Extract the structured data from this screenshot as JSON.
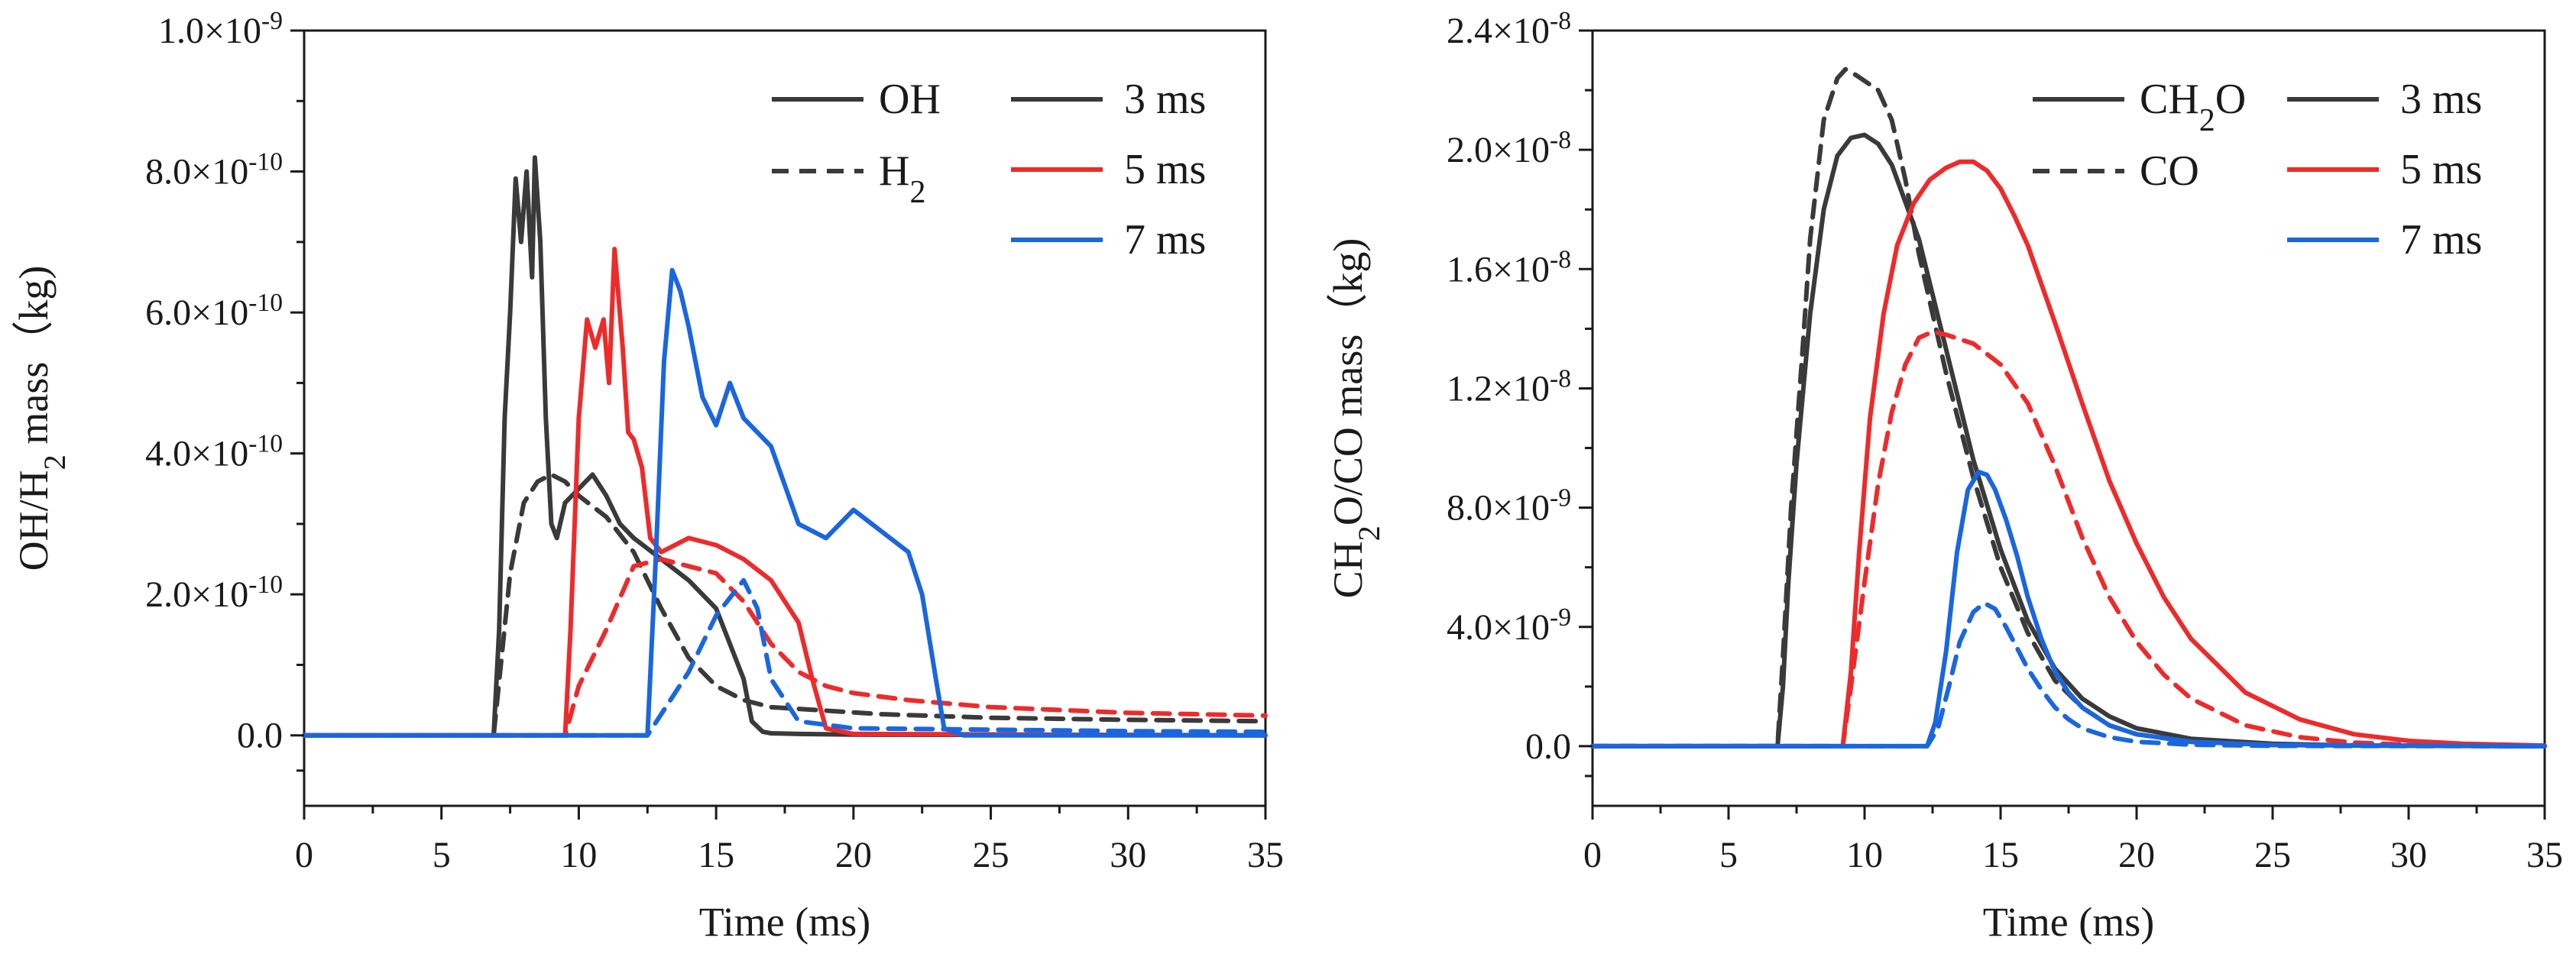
{
  "chart_data": [
    {
      "type": "line",
      "title": "",
      "xlabel": "Time (ms)",
      "ylabel": {
        "base": "OH/H",
        "sub": "2",
        "rest": " mass（kg)"
      },
      "xlim": [
        0,
        35
      ],
      "ylim": [
        -1e-10,
        1e-09
      ],
      "grid": false,
      "legend_placement": "top-right",
      "x_ticks": [
        0,
        5,
        10,
        15,
        20,
        25,
        30,
        35
      ],
      "x_tick_labels": [
        "0",
        "5",
        "10",
        "15",
        "20",
        "25",
        "30",
        "35"
      ],
      "y_ticks": [
        0,
        2e-10,
        4e-10,
        6e-10,
        8e-10,
        1e-09
      ],
      "y_tick_labels": [
        {
          "base": "0.0",
          "exp": ""
        },
        {
          "base": "2.0×10",
          "exp": "-10"
        },
        {
          "base": "4.0×10",
          "exp": "-10"
        },
        {
          "base": "6.0×10",
          "exp": "-10"
        },
        {
          "base": "8.0×10",
          "exp": "-10"
        },
        {
          "base": "1.0×10",
          "exp": "-9"
        }
      ],
      "legend_species": [
        {
          "base": "OH",
          "sub": "",
          "rest": "",
          "dash": "solid"
        },
        {
          "base": "H",
          "sub": "2",
          "rest": "",
          "dash": "dashed"
        }
      ],
      "legend_times": [
        {
          "label": "3 ms",
          "color": "#3a3a3a"
        },
        {
          "label": "5 ms",
          "color": "#ee2a2a"
        },
        {
          "label": "7 ms",
          "color": "#1a66e0"
        }
      ],
      "series": [
        {
          "name": "OH 3 ms",
          "color": "#3a3a3a",
          "dash": "solid",
          "x": [
            0,
            6.9,
            7.1,
            7.3,
            7.5,
            7.7,
            7.9,
            8.1,
            8.3,
            8.4,
            8.6,
            8.8,
            9.0,
            9.2,
            9.5,
            10.0,
            10.5,
            11.0,
            11.5,
            12.0,
            13.0,
            14.0,
            15.0,
            15.5,
            16.0,
            16.3,
            16.7,
            17.0,
            18.0,
            20.0,
            35.0
          ],
          "values": [
            0,
            0,
            1.5e-10,
            4.5e-10,
            6e-10,
            7.9e-10,
            7e-10,
            8e-10,
            6.5e-10,
            8.2e-10,
            7e-10,
            4.5e-10,
            3e-10,
            2.8e-10,
            3.3e-10,
            3.5e-10,
            3.7e-10,
            3.4e-10,
            3e-10,
            2.8e-10,
            2.5e-10,
            2.2e-10,
            1.8e-10,
            1.3e-10,
            8e-11,
            2e-11,
            5e-12,
            3e-12,
            2e-12,
            1e-12,
            0
          ]
        },
        {
          "name": "H2 3 ms",
          "color": "#3a3a3a",
          "dash": "dashed",
          "x": [
            0,
            6.9,
            7.5,
            8.0,
            8.5,
            9.0,
            9.5,
            10.0,
            11.0,
            12.0,
            13.0,
            14.0,
            15.0,
            16.0,
            17.0,
            19.0,
            21.0,
            25.0,
            30.0,
            35.0
          ],
          "values": [
            0,
            0,
            2.3e-10,
            3.3e-10,
            3.6e-10,
            3.7e-10,
            3.6e-10,
            3.4e-10,
            3.1e-10,
            2.6e-10,
            1.8e-10,
            1.1e-10,
            7e-11,
            5e-11,
            4e-11,
            3.5e-11,
            3e-11,
            2.5e-11,
            2.2e-11,
            2e-11
          ]
        },
        {
          "name": "OH 5 ms",
          "color": "#ee2a2a",
          "dash": "solid",
          "x": [
            0,
            9.5,
            9.7,
            10.0,
            10.3,
            10.6,
            10.9,
            11.1,
            11.3,
            11.6,
            11.8,
            12.0,
            12.3,
            12.6,
            13.0,
            14.0,
            15.0,
            16.0,
            17.0,
            18.0,
            18.5,
            19.0,
            20.0,
            35.0
          ],
          "values": [
            0,
            0,
            1.5e-10,
            4.5e-10,
            5.9e-10,
            5.5e-10,
            5.9e-10,
            5e-10,
            6.9e-10,
            5.5e-10,
            4.3e-10,
            4.2e-10,
            3.8e-10,
            2.8e-10,
            2.6e-10,
            2.8e-10,
            2.7e-10,
            2.5e-10,
            2.2e-10,
            1.6e-10,
            8e-11,
            1e-11,
            2e-12,
            0
          ]
        },
        {
          "name": "H2 5 ms",
          "color": "#ee2a2a",
          "dash": "dashed",
          "x": [
            0,
            9.5,
            10.0,
            11.0,
            12.0,
            13.0,
            14.0,
            15.0,
            16.0,
            17.0,
            18.0,
            19.0,
            20.0,
            22.0,
            25.0,
            30.0,
            35.0
          ],
          "values": [
            0,
            0,
            7e-11,
            1.5e-10,
            2.4e-10,
            2.5e-10,
            2.4e-10,
            2.3e-10,
            1.9e-10,
            1.3e-10,
            9e-11,
            7e-11,
            6e-11,
            5e-11,
            4e-11,
            3.2e-11,
            2.8e-11
          ]
        },
        {
          "name": "OH 7 ms",
          "color": "#1a66e0",
          "dash": "solid",
          "x": [
            0,
            12.5,
            12.8,
            13.1,
            13.4,
            13.7,
            14.0,
            14.5,
            15.0,
            15.5,
            16.0,
            17.0,
            18.0,
            19.0,
            20.0,
            21.0,
            22.0,
            22.5,
            23.0,
            23.3,
            24.0,
            35.0
          ],
          "values": [
            0,
            0,
            2.5e-10,
            5.3e-10,
            6.6e-10,
            6.3e-10,
            5.8e-10,
            4.8e-10,
            4.4e-10,
            5e-10,
            4.5e-10,
            4.1e-10,
            3e-10,
            2.8e-10,
            3.2e-10,
            2.9e-10,
            2.6e-10,
            2e-10,
            8e-11,
            1e-11,
            0,
            0
          ]
        },
        {
          "name": "H2 7 ms",
          "color": "#1a66e0",
          "dash": "dashed",
          "x": [
            0,
            12.5,
            13.0,
            14.0,
            15.0,
            16.0,
            16.5,
            17.0,
            18.0,
            20.0,
            25.0,
            30.0,
            35.0
          ],
          "values": [
            0,
            0,
            3e-11,
            9e-11,
            1.7e-10,
            2.2e-10,
            1.8e-10,
            8e-11,
            2e-11,
            1e-11,
            8e-12,
            6e-12,
            5e-12
          ]
        }
      ]
    },
    {
      "type": "line",
      "title": "",
      "xlabel": "Time (ms)",
      "ylabel": {
        "base": "CH",
        "sub": "2",
        "rest": "O/CO mass（kg)"
      },
      "xlim": [
        0,
        35
      ],
      "ylim": [
        -2e-09,
        2.4e-08
      ],
      "grid": false,
      "legend_placement": "top-right",
      "x_ticks": [
        0,
        5,
        10,
        15,
        20,
        25,
        30,
        35
      ],
      "x_tick_labels": [
        "0",
        "5",
        "10",
        "15",
        "20",
        "25",
        "30",
        "35"
      ],
      "y_ticks": [
        0,
        4e-09,
        8e-09,
        1.2e-08,
        1.6e-08,
        2e-08,
        2.4e-08
      ],
      "y_tick_labels": [
        {
          "base": "0.0",
          "exp": ""
        },
        {
          "base": "4.0×10",
          "exp": "-9"
        },
        {
          "base": "8.0×10",
          "exp": "-9"
        },
        {
          "base": "1.2×10",
          "exp": "-8"
        },
        {
          "base": "1.6×10",
          "exp": "-8"
        },
        {
          "base": "2.0×10",
          "exp": "-8"
        },
        {
          "base": "2.4×10",
          "exp": "-8"
        }
      ],
      "legend_species": [
        {
          "base": "CH",
          "sub": "2",
          "rest": "O",
          "dash": "solid"
        },
        {
          "base": "CO",
          "sub": "",
          "rest": "",
          "dash": "dashed"
        }
      ],
      "legend_times": [
        {
          "label": "3 ms",
          "color": "#3a3a3a"
        },
        {
          "label": "5 ms",
          "color": "#ee2a2a"
        },
        {
          "label": "7 ms",
          "color": "#1a66e0"
        }
      ],
      "series": [
        {
          "name": "CH2O 3 ms",
          "color": "#3a3a3a",
          "dash": "solid",
          "x": [
            0,
            6.8,
            7.0,
            7.2,
            7.5,
            8.0,
            8.5,
            9.0,
            9.5,
            10.0,
            10.5,
            11.0,
            12.0,
            13.0,
            14.0,
            15.0,
            16.0,
            17.0,
            18.0,
            19.0,
            20.0,
            22.0,
            25.0,
            28.0,
            35.0
          ],
          "values": [
            0,
            0,
            2e-09,
            5.5e-09,
            9.5e-09,
            1.45e-08,
            1.8e-08,
            1.98e-08,
            2.04e-08,
            2.05e-08,
            2.02e-08,
            1.95e-08,
            1.7e-08,
            1.33e-08,
            9.6e-09,
            6.6e-09,
            4.2e-09,
            2.6e-09,
            1.6e-09,
            1e-09,
            6e-10,
            2.5e-10,
            8e-11,
            2e-11,
            0
          ]
        },
        {
          "name": "CO 3 ms",
          "color": "#3a3a3a",
          "dash": "dashed",
          "x": [
            0,
            6.8,
            7.0,
            7.3,
            7.7,
            8.0,
            8.5,
            9.0,
            9.3,
            9.7,
            10.5,
            11.0,
            11.5,
            12.0,
            13.0,
            14.0,
            15.0,
            16.0,
            17.0,
            18.0,
            19.0,
            20.0,
            22.0,
            25.0,
            35.0
          ],
          "values": [
            0,
            0,
            3e-09,
            8e-09,
            1.3e-08,
            1.7e-08,
            2.1e-08,
            2.24e-08,
            2.27e-08,
            2.25e-08,
            2.2e-08,
            2.1e-08,
            1.9e-08,
            1.65e-08,
            1.25e-08,
            9e-09,
            6e-09,
            3.8e-09,
            2.2e-09,
            1.3e-09,
            7e-10,
            4e-10,
            1.5e-10,
            5e-11,
            0
          ]
        },
        {
          "name": "CH2O 5 ms",
          "color": "#ee2a2a",
          "dash": "solid",
          "x": [
            0,
            9.2,
            9.5,
            9.8,
            10.2,
            10.7,
            11.2,
            11.8,
            12.4,
            13.0,
            13.5,
            14.0,
            14.5,
            15.0,
            15.5,
            16.0,
            17.0,
            18.0,
            19.0,
            20.0,
            21.0,
            22.0,
            24.0,
            26.0,
            28.0,
            30.0,
            32.0,
            35.0
          ],
          "values": [
            0,
            0,
            2.5e-09,
            6.5e-09,
            1.1e-08,
            1.45e-08,
            1.68e-08,
            1.82e-08,
            1.9e-08,
            1.94e-08,
            1.96e-08,
            1.96e-08,
            1.93e-08,
            1.87e-08,
            1.78e-08,
            1.68e-08,
            1.42e-08,
            1.15e-08,
            8.9e-09,
            6.8e-09,
            5e-09,
            3.6e-09,
            1.8e-09,
            9e-10,
            4e-10,
            1.8e-10,
            8e-11,
            2e-11
          ]
        },
        {
          "name": "CO 5 ms",
          "color": "#ee2a2a",
          "dash": "dashed",
          "x": [
            0,
            9.2,
            9.5,
            10.0,
            10.5,
            11.0,
            11.5,
            12.0,
            12.5,
            13.0,
            14.0,
            15.0,
            16.0,
            17.0,
            18.0,
            19.0,
            20.0,
            21.0,
            22.0,
            24.0,
            26.0,
            28.0,
            30.0,
            35.0
          ],
          "values": [
            0,
            0,
            2e-09,
            5.5e-09,
            8.8e-09,
            1.12e-08,
            1.28e-08,
            1.37e-08,
            1.39e-08,
            1.38e-08,
            1.35e-08,
            1.28e-08,
            1.15e-08,
            9.4e-09,
            7e-09,
            5e-09,
            3.5e-09,
            2.4e-09,
            1.6e-09,
            7e-10,
            3e-10,
            1.2e-10,
            5e-11,
            0
          ]
        },
        {
          "name": "CH2O 7 ms",
          "color": "#1a66e0",
          "dash": "solid",
          "x": [
            0,
            12.3,
            12.6,
            13.0,
            13.4,
            13.8,
            14.2,
            14.5,
            14.8,
            15.2,
            15.6,
            16.0,
            16.5,
            17.0,
            17.5,
            18.0,
            19.0,
            20.0,
            22.0,
            25.0,
            35.0
          ],
          "values": [
            0,
            0,
            8e-10,
            3.2e-09,
            6.5e-09,
            8.6e-09,
            9.2e-09,
            9.1e-09,
            8.6e-09,
            7.6e-09,
            6.4e-09,
            5e-09,
            3.6e-09,
            2.5e-09,
            1.8e-09,
            1.3e-09,
            7e-10,
            4e-10,
            1.5e-10,
            4e-11,
            0
          ]
        },
        {
          "name": "CO 7 ms",
          "color": "#1a66e0",
          "dash": "dashed",
          "x": [
            0,
            12.3,
            12.7,
            13.1,
            13.5,
            14.0,
            14.4,
            14.8,
            15.2,
            15.6,
            16.0,
            16.5,
            17.0,
            17.5,
            18.0,
            19.0,
            20.0,
            22.0,
            25.0,
            35.0
          ],
          "values": [
            0,
            0,
            6e-10,
            2e-09,
            3.5e-09,
            4.5e-09,
            4.8e-09,
            4.6e-09,
            4e-09,
            3.3e-09,
            2.6e-09,
            1.9e-09,
            1.3e-09,
            9e-10,
            6e-10,
            3e-10,
            1.5e-10,
            5e-11,
            1e-11,
            0
          ]
        }
      ]
    }
  ]
}
